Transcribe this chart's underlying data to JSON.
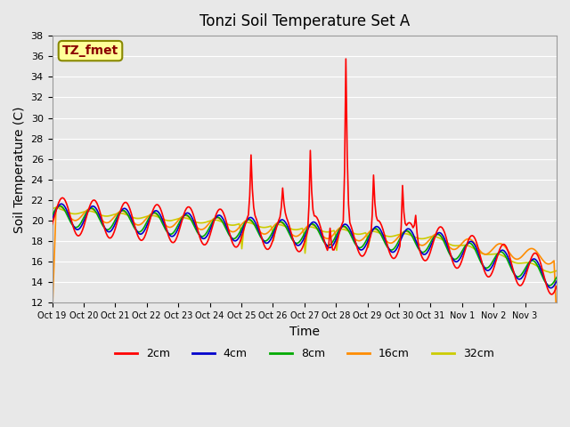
{
  "title": "Tonzi Soil Temperature Set A",
  "xlabel": "Time",
  "ylabel": "Soil Temperature (C)",
  "annotation": "TZ_fmet",
  "annotation_color": "#8B0000",
  "annotation_bg": "#FFFF99",
  "ylim": [
    12,
    38
  ],
  "yticks": [
    12,
    14,
    16,
    18,
    20,
    22,
    24,
    26,
    28,
    30,
    32,
    34,
    36,
    38
  ],
  "xtick_labels": [
    "Oct 19",
    "Oct 20",
    "Oct 21",
    "Oct 22",
    "Oct 23",
    "Oct 24",
    "Oct 25",
    "Oct 26",
    "Oct 27",
    "Oct 28",
    "Oct 29",
    "Oct 30",
    "Oct 31",
    "Nov 1",
    "Nov 2",
    "Nov 3"
  ],
  "colors": {
    "2cm": "#FF0000",
    "4cm": "#0000CC",
    "8cm": "#00AA00",
    "16cm": "#FF8C00",
    "32cm": "#CCCC00"
  },
  "bg_color": "#E8E8E8",
  "linewidth": 1.2,
  "legend_labels": [
    "2cm",
    "4cm",
    "8cm",
    "16cm",
    "32cm"
  ]
}
